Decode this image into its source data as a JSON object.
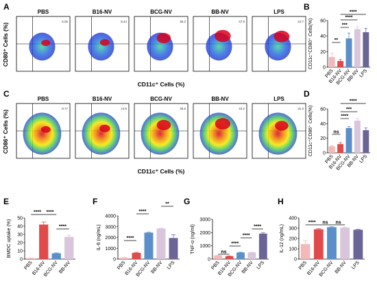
{
  "colors": {
    "PBS": "#f3b8b8",
    "B16-NV": "#e04a4a",
    "BCG-NV": "#5b8fc9",
    "BB-NV": "#d9c5dc",
    "LPS": "#6b6597"
  },
  "chart_data": [
    {
      "panel": "A",
      "type": "flow-cytometry",
      "ylabel": "CD80⁺ Cells (%)",
      "xlabel": "CD11c⁺ Cells (%)",
      "samples": [
        {
          "title": "PBS",
          "q2": "6.05"
        },
        {
          "title": "B16-NV",
          "q2": "8.44"
        },
        {
          "title": "BCG-NV",
          "q2": "35.3"
        },
        {
          "title": "BB-NV",
          "q2": "47.8"
        },
        {
          "title": "LPS",
          "q2": "44.7"
        }
      ]
    },
    {
      "panel": "B",
      "type": "bar",
      "ylabel": "CD11c⁺CD80⁺ Cells(%)",
      "categories": [
        "PBS",
        "B16-NV",
        "BCG-NV",
        "BB-NV",
        "LPS"
      ],
      "values": [
        13,
        8,
        37,
        49,
        45
      ],
      "errors": [
        5,
        2,
        7,
        3,
        5
      ],
      "ylim": [
        0,
        60
      ],
      "yticks": [
        0,
        20,
        40,
        60
      ],
      "significance": [
        {
          "from": 0,
          "to": 1,
          "label": "**"
        },
        {
          "from": 1,
          "to": 2,
          "label": "***"
        },
        {
          "from": 1,
          "to": 3,
          "label": "****"
        },
        {
          "from": 1,
          "to": 4,
          "label": "****"
        }
      ]
    },
    {
      "panel": "C",
      "type": "flow-cytometry",
      "ylabel": "CD86⁺ Cells (%)",
      "xlabel": "CD11c⁺ Cells (%)",
      "samples": [
        {
          "title": "PBS",
          "q2": "8.77"
        },
        {
          "title": "B16-NV",
          "q2": "14.9"
        },
        {
          "title": "BCG-NV",
          "q2": "35.6"
        },
        {
          "title": "BB-NV",
          "q2": "43.2"
        },
        {
          "title": "LPS",
          "q2": "31.3"
        }
      ]
    },
    {
      "panel": "D",
      "type": "bar",
      "ylabel": "CD11c⁺CD86⁺ Cells(%)",
      "categories": [
        "PBS",
        "B16-NV",
        "BCG-NV",
        "BB-NV",
        "LPS"
      ],
      "values": [
        9,
        12,
        34,
        44,
        31
      ],
      "errors": [
        1,
        2,
        2,
        3,
        3
      ],
      "ylim": [
        0,
        60
      ],
      "yticks": [
        0,
        20,
        40,
        60
      ],
      "significance": [
        {
          "from": 0,
          "to": 1,
          "label": "ns"
        },
        {
          "from": 1,
          "to": 2,
          "label": "****"
        },
        {
          "from": 1,
          "to": 3,
          "label": "***"
        },
        {
          "from": 1,
          "to": 4,
          "label": "****"
        }
      ]
    },
    {
      "panel": "E",
      "type": "bar",
      "ylabel": "BMDC uptake (%)",
      "categories": [
        "PBS",
        "B16-NV",
        "BCG-NV",
        "BB-NV"
      ],
      "values": [
        1,
        42,
        7,
        27
      ],
      "errors": [
        0.5,
        3,
        0.5,
        2
      ],
      "ylim": [
        0,
        50
      ],
      "yticks": [
        0,
        10,
        20,
        30,
        40,
        50
      ],
      "significance": [
        {
          "from": 0,
          "to": 1,
          "label": "****"
        },
        {
          "from": 1,
          "to": 2,
          "label": "****"
        },
        {
          "from": 2,
          "to": 3,
          "label": "****"
        }
      ]
    },
    {
      "panel": "F",
      "type": "bar",
      "ylabel": "IL-6 (ng/mL)",
      "categories": [
        "PBS",
        "B16-NV",
        "BCG-NV",
        "BB-NV",
        "LPS"
      ],
      "values": [
        120,
        580,
        2450,
        2820,
        1950
      ],
      "errors": [
        30,
        50,
        40,
        40,
        300
      ],
      "ylim": [
        0,
        4000
      ],
      "yticks": [
        0,
        1000,
        2000,
        3000,
        4000
      ],
      "significance": [
        {
          "from": 0,
          "to": 1,
          "label": "****"
        },
        {
          "from": 1,
          "to": 2,
          "label": "****"
        },
        {
          "from": 3,
          "to": 4,
          "label": "**"
        }
      ]
    },
    {
      "panel": "G",
      "type": "bar",
      "ylabel": "TNF-α (ng/ml)",
      "categories": [
        "PBS",
        "B16-NV",
        "BCG-NV",
        "BB-NV",
        "LPS"
      ],
      "values": [
        270,
        220,
        500,
        500,
        1920
      ],
      "errors": [
        20,
        20,
        20,
        20,
        60
      ],
      "ylim": [
        0,
        3000
      ],
      "yticks": [
        0,
        1000,
        2000,
        3000
      ],
      "significance": [
        {
          "from": 0,
          "to": 1,
          "label": "ns"
        },
        {
          "from": 1,
          "to": 2,
          "label": "****"
        },
        {
          "from": 2,
          "to": 3,
          "label": "****"
        },
        {
          "from": 3,
          "to": 4,
          "label": "****"
        }
      ]
    },
    {
      "panel": "H",
      "type": "bar",
      "ylabel": "IL-12 (ng/mL)",
      "categories": [
        "PBS",
        "B16-NV",
        "BCG-NV",
        "BB-NV",
        "LPS"
      ],
      "values": [
        145,
        290,
        310,
        305,
        285
      ],
      "errors": [
        35,
        5,
        5,
        5,
        5
      ],
      "ylim": [
        0,
        400
      ],
      "yticks": [
        0,
        100,
        200,
        300,
        400
      ],
      "significance": [
        {
          "from": 0,
          "to": 1,
          "label": "****"
        },
        {
          "from": 1,
          "to": 2,
          "label": "ns"
        },
        {
          "from": 2,
          "to": 3,
          "label": "ns"
        }
      ]
    }
  ]
}
